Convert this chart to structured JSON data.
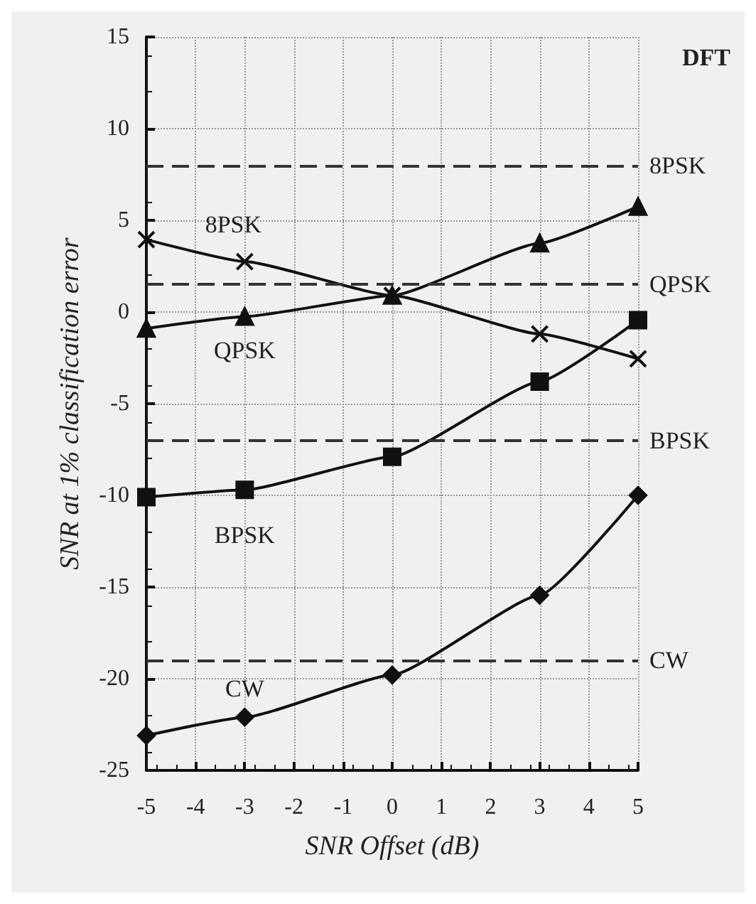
{
  "chart_data": {
    "type": "line",
    "xlabel": "SNR Offset (dB)",
    "ylabel": "SNR at 1% classification error",
    "x": [
      -5,
      -3,
      0,
      3,
      5
    ],
    "series": [
      {
        "name": "8PSK",
        "color": "#111111",
        "marker": "cross",
        "values": [
          3.95,
          2.75,
          0.9,
          -1.2,
          -2.55
        ]
      },
      {
        "name": "QPSK",
        "color": "#111111",
        "marker": "triangle",
        "values": [
          -0.9,
          -0.25,
          0.9,
          3.75,
          5.75
        ]
      },
      {
        "name": "BPSK",
        "color": "#111111",
        "marker": "square",
        "values": [
          -10.1,
          -9.7,
          -7.9,
          -3.8,
          -0.45
        ]
      },
      {
        "name": "CW",
        "color": "#111111",
        "marker": "diamond",
        "values": [
          -23.1,
          -22.1,
          -19.8,
          -15.45,
          -10
        ]
      }
    ],
    "ref_lines": [
      {
        "axis": "y",
        "value": 8,
        "label": "8PSK",
        "line_style": "dashed",
        "color": "#333333"
      },
      {
        "axis": "y",
        "value": 1.5,
        "label": "QPSK",
        "line_style": "dashed",
        "color": "#333333"
      },
      {
        "axis": "y",
        "value": -7,
        "label": "BPSK",
        "line_style": "dashed",
        "color": "#333333"
      },
      {
        "axis": "y",
        "value": -19,
        "label": "CW",
        "line_style": "dashed",
        "color": "#333333"
      }
    ],
    "annotations": [
      "DFT"
    ],
    "xlim": [
      -5,
      5
    ],
    "xticks": [
      -5,
      -4,
      -3,
      -2,
      -1,
      0,
      1,
      2,
      3,
      4,
      5
    ],
    "ylim": [
      -25,
      15
    ],
    "yticks": [
      -25,
      -20,
      -15,
      -10,
      -5,
      0,
      5,
      10,
      15
    ],
    "grid": true,
    "legend": false,
    "line_style": "solid"
  }
}
